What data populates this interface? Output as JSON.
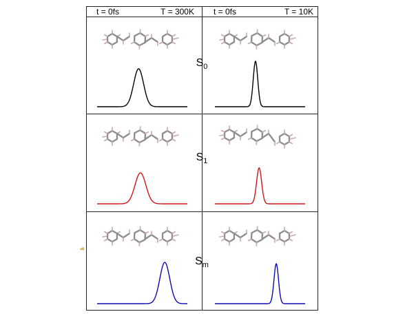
{
  "header": {
    "left": {
      "time": "t = 0fs",
      "temperature": "T = 300K"
    },
    "right": {
      "time": "t = 0fs",
      "temperature": "T = 10K"
    }
  },
  "states": [
    {
      "label": "S",
      "subscript": "0",
      "color": "#000000"
    },
    {
      "label": "S",
      "subscript": "1",
      "color": "#d21414"
    },
    {
      "label": "S",
      "subscript": "m",
      "color": "#0a0ab4"
    }
  ],
  "curves": [
    {
      "state": "S0",
      "temperature": "300K",
      "center": 0.46,
      "width": 0.055,
      "height": 0.95,
      "color": "#000000"
    },
    {
      "state": "S0",
      "temperature": "10K",
      "center": 0.45,
      "width": 0.025,
      "height": 1.0,
      "color": "#000000"
    },
    {
      "state": "S1",
      "temperature": "300K",
      "center": 0.48,
      "width": 0.06,
      "height": 0.9,
      "color": "#d21414"
    },
    {
      "state": "S1",
      "temperature": "10K",
      "center": 0.49,
      "width": 0.028,
      "height": 0.95,
      "color": "#d21414"
    },
    {
      "state": "Sm",
      "temperature": "300K",
      "center": 0.75,
      "width": 0.055,
      "height": 1.0,
      "color": "#0a0ab4"
    },
    {
      "state": "Sm",
      "temperature": "10K",
      "center": 0.68,
      "width": 0.025,
      "height": 1.0,
      "color": "#0a0ab4"
    }
  ]
}
